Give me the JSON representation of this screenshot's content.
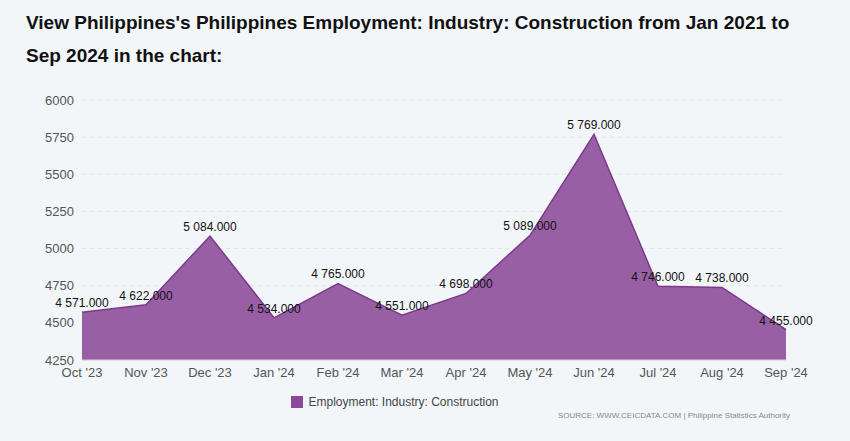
{
  "chart_data": {
    "type": "area",
    "title": "View Philippines's Philippines Employment: Industry: Construction from Jan 2021 to Sep 2024 in the chart:",
    "source": "SOURCE: WWW.CEICDATA.COM | Philippine Statistics Authority",
    "categories": [
      "Oct '23",
      "Nov '23",
      "Dec '23",
      "Jan '24",
      "Feb '24",
      "Mar '24",
      "Apr '24",
      "May '24",
      "Jun '24",
      "Jul '24",
      "Aug '24",
      "Sep '24"
    ],
    "series": [
      {
        "name": "Employment: Industry: Construction",
        "color": "#8b4a98",
        "values": [
          4571,
          4622,
          5084,
          4534,
          4765,
          4551,
          4698,
          5089,
          5769,
          4746,
          4738,
          4455
        ],
        "value_labels": [
          "4 571.000",
          "4 622.000",
          "5 084.000",
          "4 534.000",
          "4 765.000",
          "4 551.000",
          "4 698.000",
          "5 089.000",
          "5 769.000",
          "4 746.000",
          "4 738.000",
          "4 455.000"
        ]
      }
    ],
    "ylim": [
      4250,
      6000
    ],
    "yticks": [
      4250,
      4500,
      4750,
      5000,
      5250,
      5500,
      5750,
      6000
    ],
    "grid": true,
    "data_labels": true,
    "legend": "bottom"
  }
}
